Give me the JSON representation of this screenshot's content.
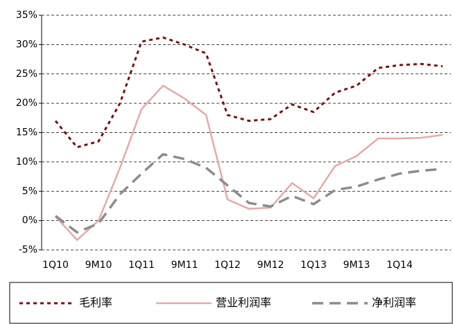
{
  "chart_data": {
    "type": "line",
    "categories": [
      "1Q10",
      null,
      "9M10",
      null,
      "1Q11",
      null,
      "9M11",
      null,
      "1Q12",
      null,
      "9M12",
      null,
      "1Q13",
      null,
      "9M13",
      null,
      "1Q14",
      null,
      null
    ],
    "series": [
      {
        "name": "毛利率",
        "color": "#7b1010",
        "dash": "dotted",
        "values": [
          17,
          12.5,
          13.5,
          20,
          30.5,
          31.2,
          30,
          28.5,
          18,
          17,
          17.3,
          19.8,
          18.5,
          21.8,
          23,
          26,
          26.5,
          26.7,
          26.3
        ]
      },
      {
        "name": "营业利润率",
        "color": "#e8a8a8",
        "dash": "solid",
        "values": [
          0.7,
          -3.3,
          0,
          9,
          19,
          23,
          20.8,
          18,
          3.6,
          2,
          2.2,
          6.4,
          3.8,
          9.3,
          11,
          14,
          14,
          14.1,
          14.6
        ]
      },
      {
        "name": "净利润率",
        "color": "#8c8c8c",
        "dash": "dashed",
        "values": [
          0.8,
          -2,
          -0.5,
          4.5,
          8,
          11.3,
          10.5,
          9,
          6,
          3,
          2.4,
          4.2,
          2.8,
          5.2,
          5.8,
          7,
          8,
          8.5,
          8.8
        ]
      }
    ],
    "ylim": [
      -5,
      35
    ],
    "yticks": [
      {
        "value": -5,
        "label": "-5%"
      },
      {
        "value": 0,
        "label": "0%"
      },
      {
        "value": 5,
        "label": "5%"
      },
      {
        "value": 10,
        "label": "10%"
      },
      {
        "value": 15,
        "label": "15%"
      },
      {
        "value": 20,
        "label": "20%"
      },
      {
        "value": 25,
        "label": "25%"
      },
      {
        "value": 30,
        "label": "30%"
      },
      {
        "value": 35,
        "label": "35%"
      }
    ],
    "grid": true,
    "legend": "bottom"
  }
}
